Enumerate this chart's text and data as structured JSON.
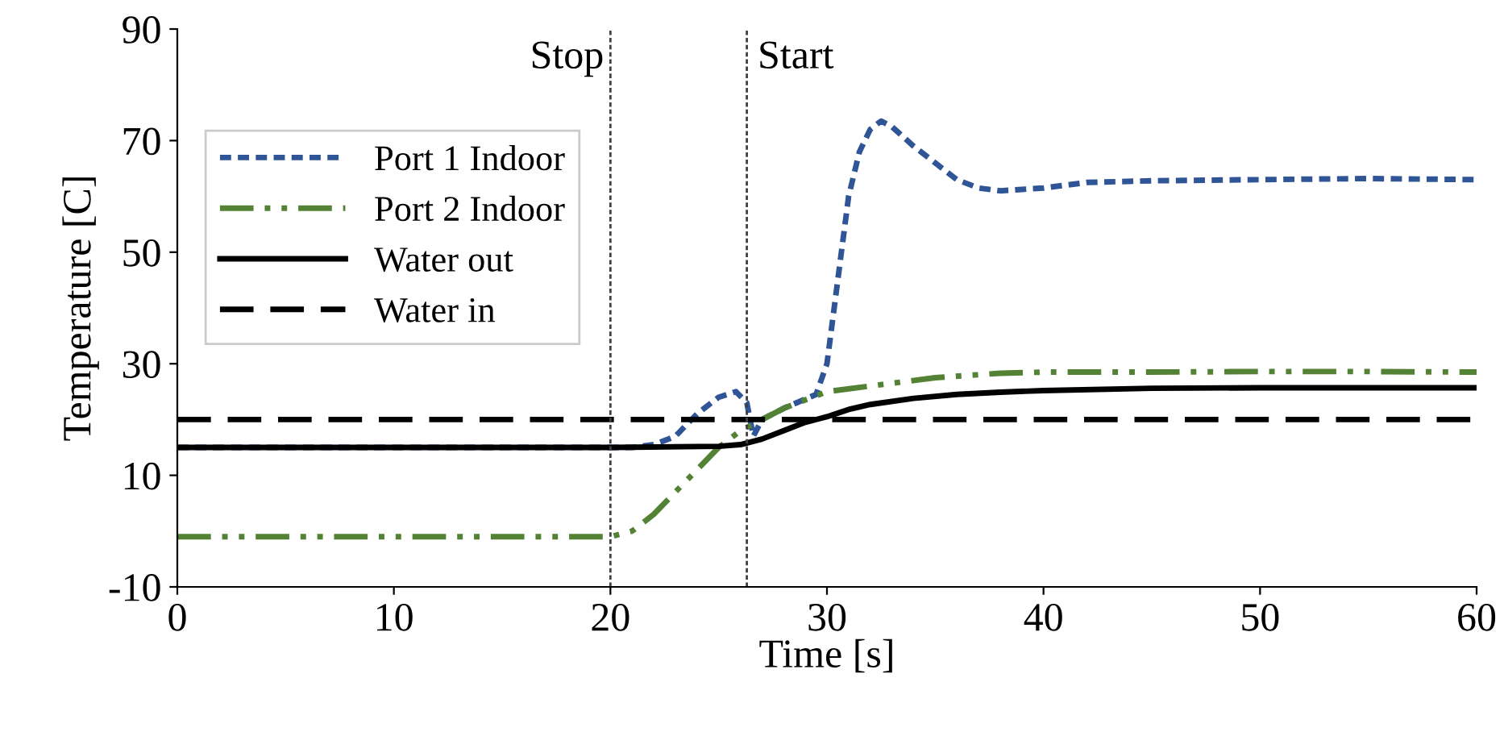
{
  "chart_data": {
    "type": "line",
    "xlabel": "Time [s]",
    "ylabel": "Temperature [C]",
    "xlim": [
      0,
      60
    ],
    "xticks": [
      0,
      10,
      20,
      30,
      40,
      50,
      60
    ],
    "ylim": [
      -10,
      90
    ],
    "yticks": [
      -10,
      10,
      30,
      50,
      70,
      90
    ],
    "grid": false,
    "legend": "top left",
    "marker": "none",
    "ref_lines": [
      {
        "axis": "x",
        "value": 20,
        "label": "Stop",
        "color": "#404040",
        "line_style": "dotted"
      },
      {
        "axis": "x",
        "value": 26.3,
        "label": "Start",
        "color": "#404040",
        "line_style": "dotted"
      }
    ],
    "series": [
      {
        "name": "Port 1 Indoor",
        "color": "#2f5597",
        "line_style": "dotted",
        "x": [
          0,
          10,
          20,
          21,
          22,
          23,
          24,
          25,
          25.8,
          26.3,
          26.6,
          27,
          28,
          29.5,
          30,
          30.5,
          31,
          31.5,
          32,
          32.5,
          33,
          34,
          35,
          36,
          37,
          38,
          40,
          42,
          45,
          50,
          55,
          60
        ],
        "values": [
          15,
          15,
          15,
          15,
          15.5,
          17,
          21,
          24,
          25,
          23,
          17,
          20,
          22,
          24.5,
          30,
          45,
          60,
          68,
          72,
          73.5,
          72.5,
          69,
          66,
          63,
          61.5,
          61,
          61.5,
          62.5,
          62.8,
          63,
          63.2,
          63
        ]
      },
      {
        "name": "Port 2 Indoor",
        "color": "#548235",
        "line_style": "dashdot",
        "x": [
          0,
          10,
          20,
          21,
          22,
          23,
          24,
          25,
          26,
          27,
          28,
          30,
          32,
          35,
          38,
          40,
          45,
          50,
          55,
          60
        ],
        "values": [
          -1,
          -1,
          -1,
          0,
          3,
          7,
          11,
          15,
          18,
          20,
          22,
          25,
          26,
          27.5,
          28.3,
          28.5,
          28.5,
          28.6,
          28.6,
          28.5
        ]
      },
      {
        "name": "Water out",
        "color": "#000000",
        "line_style": "solid",
        "x": [
          0,
          10,
          20,
          25,
          26,
          27,
          28,
          29,
          30,
          31,
          32,
          34,
          36,
          38,
          40,
          45,
          50,
          55,
          60
        ],
        "values": [
          15,
          15,
          15,
          15.2,
          15.5,
          16.5,
          18,
          19.5,
          20.5,
          21.8,
          22.7,
          23.8,
          24.5,
          24.9,
          25.2,
          25.6,
          25.7,
          25.7,
          25.7
        ]
      },
      {
        "name": "Water in",
        "color": "#000000",
        "line_style": "dashed",
        "x": [
          0,
          60
        ],
        "values": [
          20,
          20
        ]
      }
    ]
  }
}
